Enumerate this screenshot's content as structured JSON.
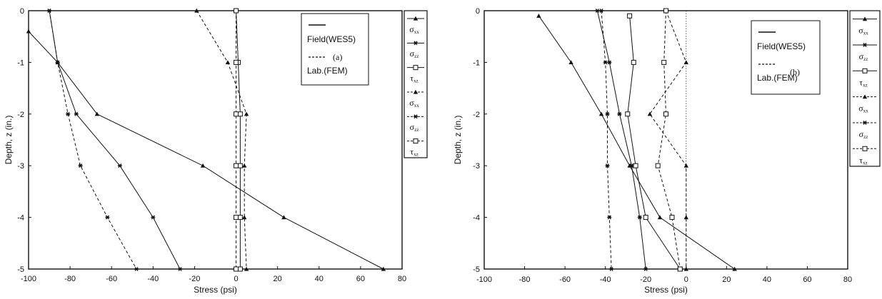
{
  "panels": [
    {
      "panel_label": "(a)",
      "xlabel": "Stress (psi)",
      "ylabel": "Depth, z (in.)",
      "xticks": [
        "-100",
        "-80",
        "-60",
        "-40",
        "-20",
        "0",
        "20",
        "40",
        "60",
        "80"
      ],
      "yticks": [
        "0",
        "-1",
        "-2",
        "-3",
        "-4",
        "-5"
      ],
      "legend_box": {
        "field": "Field(WES5)",
        "lab": "Lab.(FEM)"
      },
      "legend_side": [
        {
          "marker": "triangle",
          "dashed": false,
          "label": "σ",
          "sub": "xx"
        },
        {
          "marker": "star",
          "dashed": false,
          "label": "σ",
          "sub": "zz"
        },
        {
          "marker": "square",
          "dashed": false,
          "label": "τ",
          "sub": "xz"
        },
        {
          "marker": "triangle",
          "dashed": true,
          "label": "σ",
          "sub": "xx"
        },
        {
          "marker": "star",
          "dashed": true,
          "label": "σ",
          "sub": "zz"
        },
        {
          "marker": "square",
          "dashed": true,
          "label": "τ",
          "sub": "xz"
        }
      ]
    },
    {
      "panel_label": "(b)",
      "xlabel": "Stress (psi)",
      "ylabel": "Depth, z (in.)",
      "xticks": [
        "-100",
        "-80",
        "-60",
        "-40",
        "-20",
        "0",
        "20",
        "40",
        "60",
        "80"
      ],
      "yticks": [
        "0",
        "-1",
        "-2",
        "-3",
        "-4",
        "-5"
      ],
      "legend_box": {
        "field": "Field(WES5)",
        "lab": "Lab.(FEM)"
      },
      "legend_side": [
        {
          "marker": "triangle",
          "dashed": false,
          "label": "σ",
          "sub": "xx"
        },
        {
          "marker": "star",
          "dashed": false,
          "label": "σ",
          "sub": "zz"
        },
        {
          "marker": "square",
          "dashed": false,
          "label": "τ",
          "sub": "xz"
        },
        {
          "marker": "triangle",
          "dashed": true,
          "label": "σ",
          "sub": "xx"
        },
        {
          "marker": "star",
          "dashed": true,
          "label": "σ",
          "sub": "zz"
        },
        {
          "marker": "square",
          "dashed": true,
          "label": "τ",
          "sub": "xz"
        }
      ]
    }
  ],
  "chart_data": [
    {
      "type": "line",
      "title": "(a)",
      "xlabel": "Stress (psi)",
      "ylabel": "Depth, z (in.)",
      "xlim": [
        -100,
        80
      ],
      "ylim": [
        -5,
        0
      ],
      "grid": false,
      "legend_placement": "top-right",
      "series": [
        {
          "name": "Field(WES5) σxx",
          "style": "solid",
          "marker": "triangle",
          "x": [
            -100,
            -86,
            -67,
            -16,
            23,
            71
          ],
          "y": [
            -0.4,
            -1,
            -2,
            -3,
            -4,
            -5
          ]
        },
        {
          "name": "Field(WES5) σzz",
          "style": "solid",
          "marker": "star",
          "x": [
            -90,
            -86,
            -77,
            -56,
            -40,
            -27
          ],
          "y": [
            0,
            -1,
            -2,
            -3,
            -4,
            -5
          ]
        },
        {
          "name": "Field(WES5) τxz",
          "style": "solid",
          "marker": "square",
          "x": [
            0,
            1,
            2,
            2,
            2,
            2
          ],
          "y": [
            0,
            -1,
            -2,
            -3,
            -4,
            -5
          ]
        },
        {
          "name": "Lab.(FEM) σxx",
          "style": "dashed",
          "marker": "triangle",
          "x": [
            -19,
            -4,
            5,
            4,
            4,
            5
          ],
          "y": [
            0,
            -1,
            -2,
            -3,
            -4,
            -5
          ]
        },
        {
          "name": "Lab.(FEM) σzz",
          "style": "dashed",
          "marker": "star",
          "x": [
            -90,
            -86,
            -81,
            -75,
            -62,
            -48
          ],
          "y": [
            0,
            -1,
            -2,
            -3,
            -4,
            -5
          ]
        },
        {
          "name": "Lab.(FEM) τxz",
          "style": "dashed",
          "marker": "square",
          "x": [
            0,
            0,
            0,
            0,
            0,
            0
          ],
          "y": [
            0,
            -1,
            -2,
            -3,
            -4,
            -5
          ]
        }
      ]
    },
    {
      "type": "line",
      "title": "(b)",
      "xlabel": "Stress (psi)",
      "ylabel": "Depth, z (in.)",
      "xlim": [
        -100,
        80
      ],
      "ylim": [
        -5,
        0
      ],
      "grid": false,
      "legend_placement": "top-right",
      "series": [
        {
          "name": "Field(WES5) σxx",
          "style": "solid",
          "marker": "triangle",
          "x": [
            -73,
            -57,
            -42,
            -28,
            -13,
            24
          ],
          "y": [
            -0.1,
            -1,
            -2,
            -3,
            -4,
            -5
          ]
        },
        {
          "name": "Field(WES5) σzz",
          "style": "solid",
          "marker": "star",
          "x": [
            -44,
            -38,
            -33,
            -27,
            -23,
            -20
          ],
          "y": [
            0,
            -1,
            -2,
            -3,
            -4,
            -5
          ]
        },
        {
          "name": "Field(WES5) τxz",
          "style": "solid",
          "marker": "square",
          "x": [
            -28,
            -26,
            -29,
            -25,
            -20,
            -3
          ],
          "y": [
            -0.1,
            -1,
            -2,
            -3,
            -4,
            -5
          ]
        },
        {
          "name": "Lab.(FEM) σxx",
          "style": "dashed",
          "marker": "triangle",
          "x": [
            -10,
            0,
            -18,
            0,
            0,
            0
          ],
          "y": [
            0,
            -1,
            -2,
            -3,
            -4,
            -5
          ]
        },
        {
          "name": "Lab.(FEM) σzz",
          "style": "dashed",
          "marker": "star",
          "x": [
            -42,
            -40,
            -39,
            -39,
            -38,
            -37
          ],
          "y": [
            0,
            -1,
            -2,
            -3,
            -4,
            -5
          ]
        },
        {
          "name": "Lab.(FEM) τxz",
          "style": "dashed",
          "marker": "square",
          "x": [
            -10,
            -11,
            -10,
            -14,
            -7,
            -3
          ],
          "y": [
            0,
            -1,
            -2,
            -3,
            -4,
            -5
          ]
        }
      ]
    }
  ]
}
